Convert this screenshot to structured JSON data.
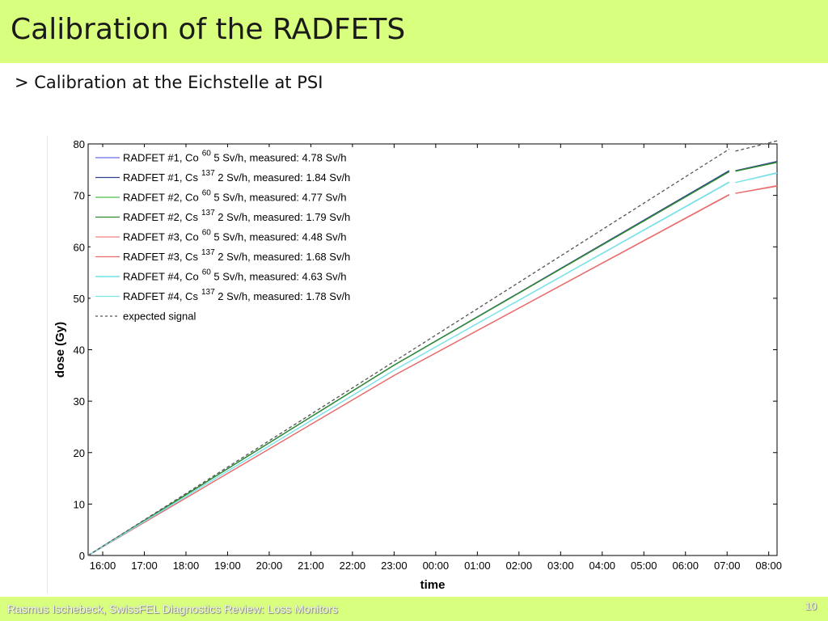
{
  "slide": {
    "title": "Calibration of the RADFETS",
    "bullet": "> Calibration at the Eichstelle at PSI",
    "footer": "Rasmus Ischebeck, SwissFEL Diagnostics Review: Loss Monitors",
    "page_number": "10"
  },
  "chart_data": {
    "type": "line",
    "xlabel": "time",
    "ylabel": "dose (Gy)",
    "x_ticks": [
      "16:00",
      "17:00",
      "18:00",
      "19:00",
      "20:00",
      "21:00",
      "22:00",
      "23:00",
      "00:00",
      "01:00",
      "02:00",
      "03:00",
      "04:00",
      "05:00",
      "06:00",
      "07:00",
      "08:00"
    ],
    "x_range_hours": [
      -0.35,
      16.2
    ],
    "ylim": [
      0,
      80
    ],
    "y_ticks": [
      0,
      10,
      20,
      30,
      40,
      50,
      60,
      70,
      80
    ],
    "legend_position": "top-left",
    "gap_hours": [
      15.05,
      15.2
    ],
    "series": [
      {
        "name": "RADFET #1, Co",
        "sup": "60",
        "rest": " 5 Sv/h, measured: 4.78 Sv/h",
        "color": "#6a6ae8",
        "dash": false,
        "points": [
          [
            -0.35,
            0
          ],
          [
            7,
            37
          ],
          [
            15.05,
            74.8
          ],
          [
            15.2,
            74.8
          ],
          [
            16.2,
            76.5
          ]
        ]
      },
      {
        "name": "RADFET #1, Cs",
        "sup": "137",
        "rest": " 2 Sv/h, measured: 1.84 Sv/h",
        "color": "#2f3e8f",
        "dash": false,
        "points": [
          [
            -0.35,
            0
          ],
          [
            7,
            37
          ],
          [
            15.05,
            74.8
          ],
          [
            15.2,
            74.8
          ],
          [
            16.2,
            76.6
          ]
        ]
      },
      {
        "name": "RADFET #2, Co",
        "sup": "60",
        "rest": " 5 Sv/h, measured: 4.77 Sv/h",
        "color": "#4fbf4f",
        "dash": false,
        "points": [
          [
            -0.35,
            0
          ],
          [
            7,
            37
          ],
          [
            15.05,
            74.6
          ],
          [
            15.2,
            74.7
          ],
          [
            16.2,
            76.4
          ]
        ]
      },
      {
        "name": "RADFET #2, Cs",
        "sup": "137",
        "rest": " 2 Sv/h, measured: 1.79 Sv/h",
        "color": "#2e8b2e",
        "dash": false,
        "points": [
          [
            -0.35,
            0
          ],
          [
            7,
            37
          ],
          [
            15.05,
            74.6
          ],
          [
            15.2,
            74.7
          ],
          [
            16.2,
            76.4
          ]
        ]
      },
      {
        "name": "RADFET #3, Co",
        "sup": "60",
        "rest": " 5 Sv/h, measured: 4.48 Sv/h",
        "color": "#f28080",
        "dash": false,
        "points": [
          [
            -0.35,
            0
          ],
          [
            7,
            35
          ],
          [
            15.05,
            70.2
          ],
          [
            15.2,
            70.4
          ],
          [
            16.2,
            71.9
          ]
        ]
      },
      {
        "name": "RADFET #3, Cs",
        "sup": "137",
        "rest": " 2 Sv/h, measured: 1.68 Sv/h",
        "color": "#e86a6a",
        "dash": false,
        "points": [
          [
            -0.35,
            0
          ],
          [
            7,
            35
          ],
          [
            15.05,
            70.1
          ],
          [
            15.2,
            70.4
          ],
          [
            16.2,
            71.8
          ]
        ]
      },
      {
        "name": "RADFET #4, Co",
        "sup": "60",
        "rest": " 5 Sv/h, measured: 4.63 Sv/h",
        "color": "#56d9e0",
        "dash": false,
        "points": [
          [
            -0.35,
            0
          ],
          [
            7,
            36
          ],
          [
            15.05,
            72.6
          ],
          [
            15.2,
            72.5
          ],
          [
            16.2,
            74.4
          ]
        ]
      },
      {
        "name": "RADFET #4, Cs",
        "sup": "137",
        "rest": " 2 Sv/h, measured: 1.78 Sv/h",
        "color": "#7fe3ea",
        "dash": false,
        "points": [
          [
            -0.35,
            0
          ],
          [
            7,
            36
          ],
          [
            15.05,
            72.5
          ],
          [
            15.2,
            72.5
          ],
          [
            16.2,
            74.3
          ]
        ]
      },
      {
        "name": "expected signal",
        "sup": "",
        "rest": "",
        "color": "#555555",
        "dash": true,
        "points": [
          [
            -0.35,
            0
          ],
          [
            15.05,
            79
          ],
          [
            15.2,
            78.6
          ],
          [
            16.2,
            80.6
          ]
        ]
      }
    ]
  }
}
